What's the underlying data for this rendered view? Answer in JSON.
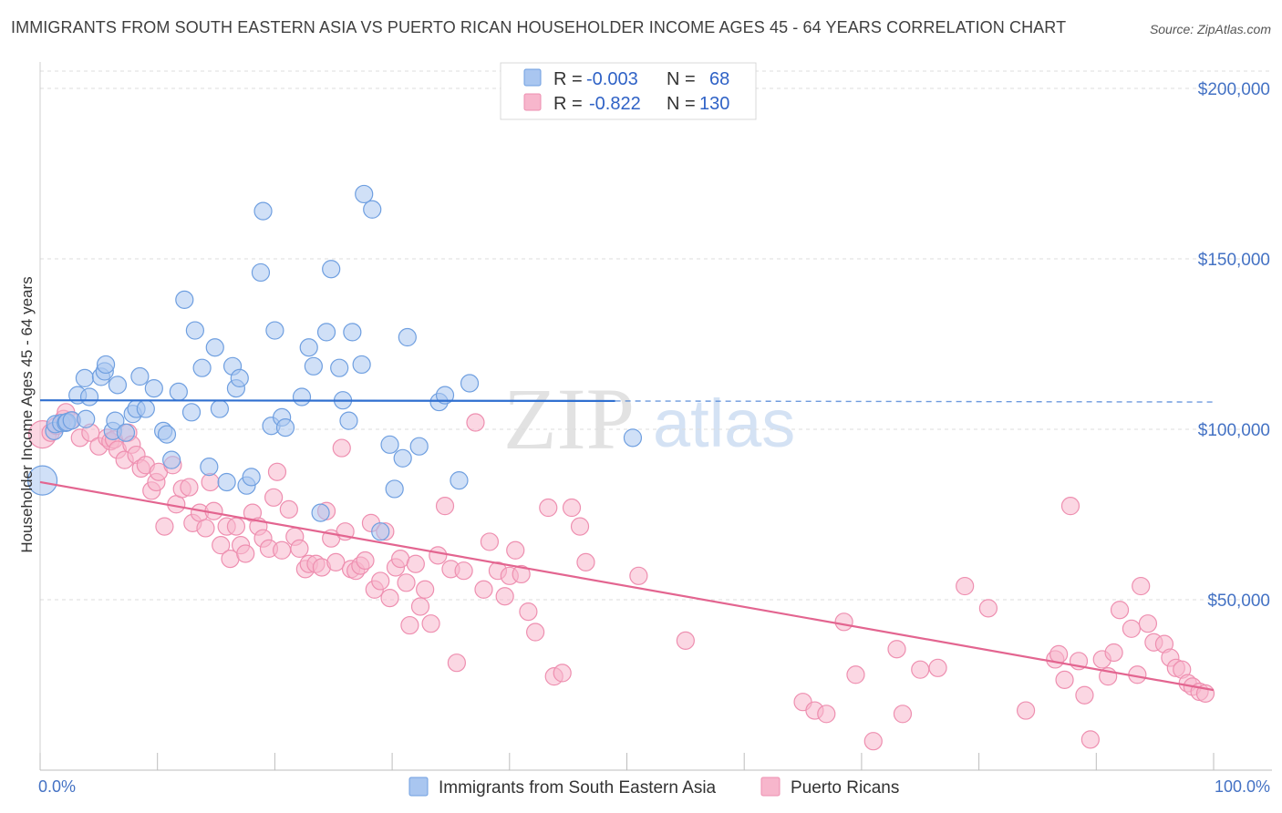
{
  "header": {
    "title": "IMMIGRANTS FROM SOUTH EASTERN ASIA VS PUERTO RICAN HOUSEHOLDER INCOME AGES 45 - 64 YEARS CORRELATION CHART",
    "source": "Source: ZipAtlas.com"
  },
  "watermark": {
    "zip": "ZIP",
    "atlas": "atlas"
  },
  "legend": {
    "rows": [
      {
        "r_label": "R =",
        "r_value": "-0.003",
        "n_label": "N =",
        "n_value": "68",
        "color": "#a9c6f0"
      },
      {
        "r_label": "R =",
        "r_value": "-0.822",
        "n_label": "N =",
        "n_value": "130",
        "color": "#f7b6cc"
      }
    ]
  },
  "bottom_legend": [
    {
      "label": "Immigrants from South Eastern Asia",
      "color": "#a9c6f0"
    },
    {
      "label": "Puerto Ricans",
      "color": "#f7b6cc"
    }
  ],
  "chart_data": {
    "type": "scatter",
    "ylabel": "Householder Income Ages 45 - 64 years",
    "xlabel": "",
    "xlim": [
      0,
      100
    ],
    "ylim": [
      0,
      200000
    ],
    "x_tick_labels": [
      {
        "value": 0,
        "label": "0.0%"
      },
      {
        "value": 100,
        "label": "100.0%"
      }
    ],
    "y_tick_labels": [
      {
        "value": 50000,
        "label": "$50,000"
      },
      {
        "value": 100000,
        "label": "$100,000"
      },
      {
        "value": 150000,
        "label": "$150,000"
      },
      {
        "value": 200000,
        "label": "$200,000"
      }
    ],
    "grid": true,
    "colors": {
      "blue_fill": "#a9c6f0",
      "blue_stroke": "#6f9fe0",
      "blue_line": "#2f6fd0",
      "pink_fill": "#f7b6cc",
      "pink_stroke": "#ee8fb0",
      "pink_line": "#e36590"
    },
    "series": [
      {
        "name": "Immigrants from South Eastern Asia",
        "color": "#a9c6f0",
        "trend": {
          "x": [
            0,
            49
          ],
          "y": [
            108500,
            108300
          ],
          "dashed_to": [
            100,
            108000
          ]
        },
        "points": [
          [
            0.2,
            85000
          ],
          [
            1.2,
            99500
          ],
          [
            1.3,
            101500
          ],
          [
            1.8,
            101800
          ],
          [
            2.2,
            101900
          ],
          [
            2.3,
            102100
          ],
          [
            2.7,
            102600
          ],
          [
            3.2,
            110000
          ],
          [
            3.8,
            115000
          ],
          [
            3.9,
            103000
          ],
          [
            4.2,
            109500
          ],
          [
            5.2,
            115400
          ],
          [
            5.5,
            117000
          ],
          [
            5.6,
            119000
          ],
          [
            6.2,
            99500
          ],
          [
            6.4,
            102500
          ],
          [
            6.6,
            113000
          ],
          [
            7.3,
            99000
          ],
          [
            7.9,
            104500
          ],
          [
            8.2,
            106000
          ],
          [
            8.5,
            115500
          ],
          [
            9.0,
            106000
          ],
          [
            9.7,
            112000
          ],
          [
            10.5,
            99500
          ],
          [
            10.8,
            98500
          ],
          [
            11.2,
            91000
          ],
          [
            11.8,
            111000
          ],
          [
            12.3,
            138000
          ],
          [
            12.9,
            105000
          ],
          [
            13.2,
            129000
          ],
          [
            13.8,
            118000
          ],
          [
            14.4,
            89000
          ],
          [
            14.9,
            124000
          ],
          [
            15.3,
            106000
          ],
          [
            15.9,
            84500
          ],
          [
            16.4,
            118500
          ],
          [
            16.7,
            112000
          ],
          [
            17.0,
            115000
          ],
          [
            17.6,
            83500
          ],
          [
            18.0,
            86000
          ],
          [
            18.8,
            146000
          ],
          [
            19.0,
            164000
          ],
          [
            19.7,
            101000
          ],
          [
            20.0,
            129000
          ],
          [
            20.6,
            103500
          ],
          [
            20.9,
            100500
          ],
          [
            22.3,
            109500
          ],
          [
            22.9,
            124000
          ],
          [
            23.3,
            118500
          ],
          [
            23.9,
            75500
          ],
          [
            24.4,
            128500
          ],
          [
            24.8,
            147000
          ],
          [
            25.5,
            118000
          ],
          [
            25.8,
            108500
          ],
          [
            26.3,
            102500
          ],
          [
            26.6,
            128500
          ],
          [
            27.4,
            119000
          ],
          [
            27.6,
            169000
          ],
          [
            28.3,
            164500
          ],
          [
            29.0,
            70000
          ],
          [
            29.8,
            95500
          ],
          [
            30.2,
            82500
          ],
          [
            30.9,
            91500
          ],
          [
            31.3,
            127000
          ],
          [
            32.3,
            95000
          ],
          [
            34.0,
            108000
          ],
          [
            34.5,
            110000
          ],
          [
            35.7,
            85000
          ],
          [
            36.6,
            113500
          ],
          [
            50.5,
            97500
          ]
        ]
      },
      {
        "name": "Puerto Ricans",
        "color": "#f7b6cc",
        "trend": {
          "x": [
            0,
            100
          ],
          "y": [
            84500,
            23500
          ]
        },
        "points": [
          [
            0.2,
            98500
          ],
          [
            0.9,
            99000
          ],
          [
            1.4,
            101000
          ],
          [
            2.0,
            103000
          ],
          [
            2.2,
            105000
          ],
          [
            2.6,
            102500
          ],
          [
            3.4,
            97500
          ],
          [
            4.3,
            99000
          ],
          [
            5.0,
            95000
          ],
          [
            5.7,
            97500
          ],
          [
            6.0,
            96500
          ],
          [
            6.3,
            97000
          ],
          [
            6.6,
            94000
          ],
          [
            7.2,
            91000
          ],
          [
            7.5,
            99000
          ],
          [
            7.8,
            95500
          ],
          [
            8.2,
            92500
          ],
          [
            8.6,
            88500
          ],
          [
            9.0,
            89500
          ],
          [
            9.5,
            82000
          ],
          [
            9.9,
            84500
          ],
          [
            10.1,
            87500
          ],
          [
            10.6,
            71500
          ],
          [
            11.3,
            89500
          ],
          [
            11.6,
            78000
          ],
          [
            12.1,
            82500
          ],
          [
            12.7,
            83000
          ],
          [
            13.0,
            72500
          ],
          [
            13.6,
            75500
          ],
          [
            14.1,
            71000
          ],
          [
            14.5,
            84500
          ],
          [
            14.8,
            76000
          ],
          [
            15.4,
            66000
          ],
          [
            15.9,
            71500
          ],
          [
            16.2,
            62000
          ],
          [
            16.7,
            71500
          ],
          [
            17.1,
            66000
          ],
          [
            17.5,
            63500
          ],
          [
            18.1,
            75500
          ],
          [
            18.6,
            71500
          ],
          [
            19.0,
            68000
          ],
          [
            19.5,
            65000
          ],
          [
            19.9,
            80000
          ],
          [
            20.2,
            87500
          ],
          [
            20.6,
            64500
          ],
          [
            21.2,
            76500
          ],
          [
            21.7,
            68500
          ],
          [
            22.1,
            65000
          ],
          [
            22.6,
            59000
          ],
          [
            22.9,
            60500
          ],
          [
            23.5,
            60500
          ],
          [
            24.0,
            59500
          ],
          [
            24.4,
            76000
          ],
          [
            24.8,
            68000
          ],
          [
            25.2,
            61000
          ],
          [
            25.7,
            94500
          ],
          [
            26.0,
            70000
          ],
          [
            26.5,
            59000
          ],
          [
            26.9,
            58500
          ],
          [
            27.3,
            60000
          ],
          [
            27.7,
            61500
          ],
          [
            28.2,
            72500
          ],
          [
            28.5,
            53000
          ],
          [
            29.0,
            55500
          ],
          [
            29.4,
            70000
          ],
          [
            29.8,
            50500
          ],
          [
            30.3,
            59500
          ],
          [
            30.7,
            62000
          ],
          [
            31.2,
            55000
          ],
          [
            31.5,
            42500
          ],
          [
            32.0,
            60500
          ],
          [
            32.4,
            48000
          ],
          [
            32.8,
            53000
          ],
          [
            33.3,
            43000
          ],
          [
            33.9,
            63000
          ],
          [
            34.5,
            77500
          ],
          [
            35.0,
            59000
          ],
          [
            35.5,
            31500
          ],
          [
            36.1,
            58500
          ],
          [
            37.1,
            102000
          ],
          [
            37.8,
            53000
          ],
          [
            38.3,
            67000
          ],
          [
            39.0,
            58500
          ],
          [
            39.6,
            51000
          ],
          [
            40.0,
            57000
          ],
          [
            40.5,
            64500
          ],
          [
            41.0,
            57500
          ],
          [
            41.6,
            46500
          ],
          [
            42.2,
            40500
          ],
          [
            43.3,
            77000
          ],
          [
            43.8,
            27500
          ],
          [
            44.5,
            28500
          ],
          [
            45.3,
            77000
          ],
          [
            46.0,
            71500
          ],
          [
            46.5,
            61000
          ],
          [
            51.0,
            57000
          ],
          [
            55.0,
            38000
          ],
          [
            65.0,
            20000
          ],
          [
            66.0,
            17500
          ],
          [
            67.0,
            16500
          ],
          [
            68.5,
            43500
          ],
          [
            69.5,
            28000
          ],
          [
            71.0,
            8500
          ],
          [
            73.0,
            35500
          ],
          [
            73.5,
            16500
          ],
          [
            75.0,
            29500
          ],
          [
            76.5,
            30000
          ],
          [
            78.8,
            54000
          ],
          [
            80.8,
            47500
          ],
          [
            84.0,
            17500
          ],
          [
            86.5,
            32500
          ],
          [
            86.8,
            34000
          ],
          [
            87.3,
            26500
          ],
          [
            87.8,
            77500
          ],
          [
            88.5,
            32000
          ],
          [
            89.0,
            22000
          ],
          [
            89.5,
            9000
          ],
          [
            90.5,
            32500
          ],
          [
            91.0,
            27500
          ],
          [
            91.5,
            34500
          ],
          [
            92.0,
            47000
          ],
          [
            93.0,
            41500
          ],
          [
            93.5,
            28000
          ],
          [
            93.8,
            54000
          ],
          [
            94.4,
            43000
          ],
          [
            94.9,
            37500
          ],
          [
            95.8,
            37000
          ],
          [
            96.3,
            33000
          ],
          [
            96.8,
            30000
          ],
          [
            97.3,
            29500
          ],
          [
            97.8,
            25500
          ],
          [
            98.2,
            24500
          ],
          [
            98.8,
            23000
          ],
          [
            99.3,
            22500
          ]
        ]
      }
    ]
  }
}
